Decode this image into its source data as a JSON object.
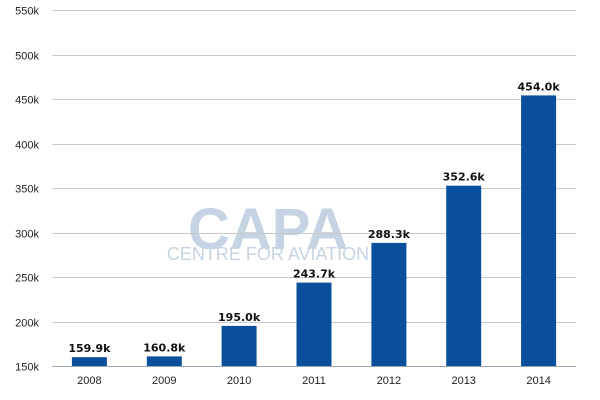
{
  "chart_data": {
    "type": "bar",
    "title": "",
    "xlabel": "",
    "ylabel": "",
    "categories": [
      "2008",
      "2009",
      "2010",
      "2011",
      "2012",
      "2013",
      "2014"
    ],
    "values": [
      159.9,
      160.8,
      195.0,
      243.7,
      288.3,
      352.6,
      454.0
    ],
    "value_labels": [
      "159.9k",
      "160.8k",
      "195.0k",
      "243.7k",
      "288.3k",
      "352.6k",
      "454.0k"
    ],
    "ylim": [
      150,
      550
    ],
    "yticks": [
      150,
      200,
      250,
      300,
      350,
      400,
      450,
      500,
      550
    ],
    "ytick_labels": [
      "150k",
      "200k",
      "250k",
      "300k",
      "350k",
      "400k",
      "450k",
      "500k",
      "550k"
    ],
    "grid": true,
    "bar_color": "#0a4f9c",
    "grid_color": "#c8c8c8"
  },
  "watermark": {
    "brand": "CAPA",
    "subtitle": "CENTRE FOR AVIATION",
    "color": "#c5d3e2"
  }
}
